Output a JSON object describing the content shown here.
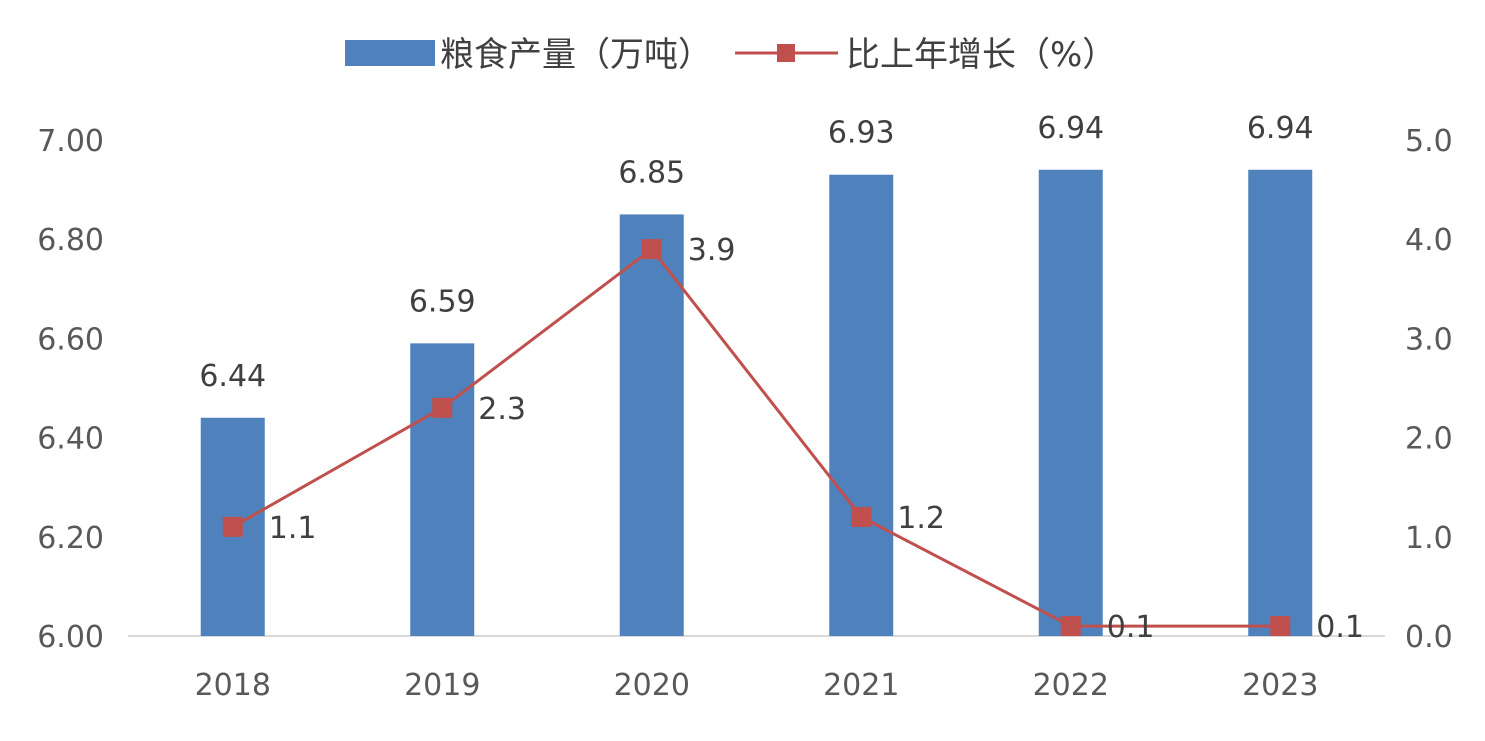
{
  "chart_data": {
    "type": "bar",
    "categories": [
      "2018",
      "2019",
      "2020",
      "2021",
      "2022",
      "2023"
    ],
    "series": [
      {
        "name": "粮食产量（万吨）",
        "type": "bar",
        "axis": "left",
        "values": [
          6.44,
          6.59,
          6.85,
          6.93,
          6.94,
          6.94
        ],
        "labels": [
          "6.44",
          "6.59",
          "6.85",
          "6.93",
          "6.94",
          "6.94"
        ],
        "color": "#4F81BD"
      },
      {
        "name": "比上年增长（%）",
        "type": "line",
        "axis": "right",
        "values": [
          1.1,
          2.3,
          3.9,
          1.2,
          0.1,
          0.1
        ],
        "labels": [
          "1.1",
          "2.3",
          "3.9",
          "1.2",
          "0.1",
          "0.1"
        ],
        "color": "#C0504D"
      }
    ],
    "y_left": {
      "min": 6.0,
      "max": 7.0,
      "ticks": [
        "6.00",
        "6.20",
        "6.40",
        "6.60",
        "6.80",
        "7.00"
      ]
    },
    "y_right": {
      "min": 0.0,
      "max": 5.0,
      "ticks": [
        "0.0",
        "1.0",
        "2.0",
        "3.0",
        "4.0",
        "5.0"
      ]
    },
    "legend_position": "top-center",
    "grid": false
  }
}
